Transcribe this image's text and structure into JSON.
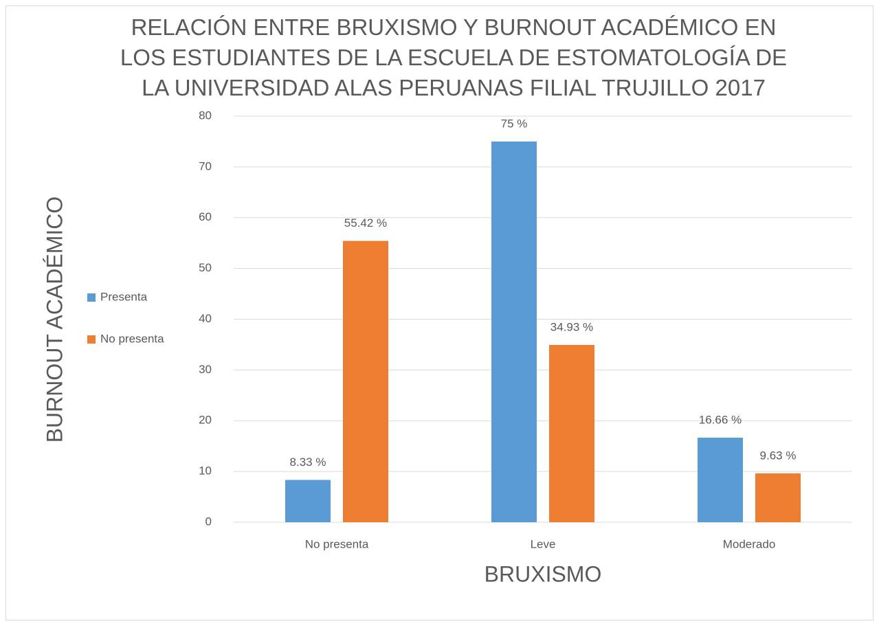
{
  "chart_data": {
    "type": "bar",
    "title": "RELACIÓN ENTRE BRUXISMO Y BURNOUT ACADÉMICO EN LOS ESTUDIANTES DE LA ESCUELA DE ESTOMATOLOGÍA DE LA UNIVERSIDAD ALAS PERUANAS FILIAL TRUJILLO 2017",
    "x_label": "BRUXISMO",
    "y_label": "BURNOUT  ACADÉMICO",
    "categories": [
      "No presenta",
      "Leve",
      "Moderado"
    ],
    "series": [
      {
        "name": "Presenta",
        "color": "#5b9bd5",
        "values": [
          8.33,
          75,
          16.66
        ],
        "value_labels": [
          "8.33 %",
          "75 %",
          "16.66 %"
        ]
      },
      {
        "name": "No presenta",
        "color": "#ed7d31",
        "values": [
          55.42,
          34.93,
          9.63
        ],
        "value_labels": [
          "55.42 %",
          "34.93 %",
          "9.63 %"
        ]
      }
    ],
    "ylim": [
      0,
      80
    ],
    "yticks": [
      0,
      10,
      20,
      30,
      40,
      50,
      60,
      70,
      80
    ],
    "grid": true,
    "legend": "left"
  }
}
